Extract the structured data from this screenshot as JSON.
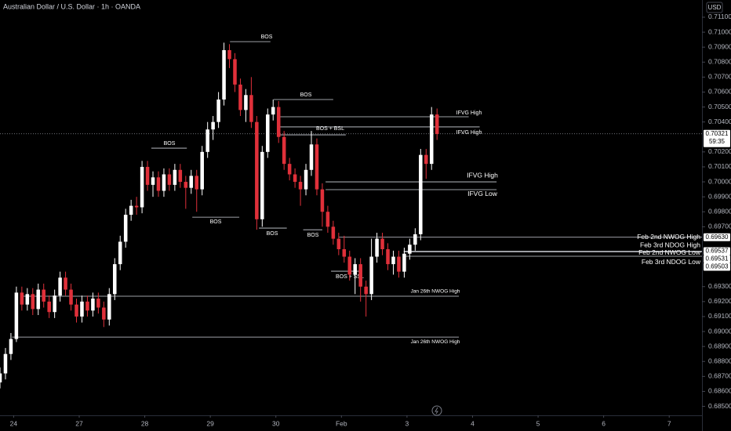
{
  "chart_data": {
    "type": "candlestick",
    "title": "Australian Dollar / U.S. Dollar · 1h · OANDA",
    "currency": "USD",
    "countdown": "59:35",
    "up_color": "#ffffff",
    "down_color": "#e0303a",
    "xlim": [
      0,
      128.5
    ],
    "xticks": [
      {
        "value": 2.5,
        "label": "24"
      },
      {
        "value": 14.5,
        "label": "27"
      },
      {
        "value": 26.5,
        "label": "28"
      },
      {
        "value": 38.5,
        "label": "29"
      },
      {
        "value": 50.5,
        "label": "30"
      },
      {
        "value": 62.5,
        "label": "Feb"
      },
      {
        "value": 74.5,
        "label": "3"
      },
      {
        "value": 86.5,
        "label": "4"
      },
      {
        "value": 98.5,
        "label": "5"
      },
      {
        "value": 110.5,
        "label": "6"
      },
      {
        "value": 122.5,
        "label": "7"
      }
    ],
    "ylim": [
      0.6844,
      0.71215
    ],
    "yticks": [
      {
        "value": 0.685,
        "label": "0.68500"
      },
      {
        "value": 0.686,
        "label": "0.68600"
      },
      {
        "value": 0.687,
        "label": "0.68700"
      },
      {
        "value": 0.688,
        "label": "0.68800"
      },
      {
        "value": 0.689,
        "label": "0.68900"
      },
      {
        "value": 0.69,
        "label": "0.69000"
      },
      {
        "value": 0.691,
        "label": "0.69100"
      },
      {
        "value": 0.692,
        "label": "0.69200"
      },
      {
        "value": 0.693,
        "label": "0.69300"
      },
      {
        "value": 0.697,
        "label": "0.69700"
      },
      {
        "value": 0.698,
        "label": "0.69800"
      },
      {
        "value": 0.699,
        "label": "0.69900"
      },
      {
        "value": 0.7,
        "label": "0.70000"
      },
      {
        "value": 0.701,
        "label": "0.70100"
      },
      {
        "value": 0.702,
        "label": "0.70200"
      },
      {
        "value": 0.704,
        "label": "0.70400"
      },
      {
        "value": 0.705,
        "label": "0.70500"
      },
      {
        "value": 0.706,
        "label": "0.70600"
      },
      {
        "value": 0.707,
        "label": "0.70700"
      },
      {
        "value": 0.708,
        "label": "0.70800"
      },
      {
        "value": 0.709,
        "label": "0.70900"
      },
      {
        "value": 0.71,
        "label": "0.71000"
      },
      {
        "value": 0.711,
        "label": "0.71100"
      }
    ],
    "grid": false,
    "open": [
      0.6866,
      0.6872,
      0.6885,
      0.6895,
      0.6926,
      0.6918,
      0.6925,
      0.6915,
      0.6928,
      0.692,
      0.6913,
      0.6924,
      0.6936,
      0.6928,
      0.6918,
      0.691,
      0.692,
      0.6914,
      0.6922,
      0.6916,
      0.6908,
      0.6925,
      0.6945,
      0.696,
      0.6978,
      0.6984,
      0.6983,
      0.701,
      0.6998,
      0.7003,
      0.6994,
      0.7005,
      0.6998,
      0.7008,
      0.7,
      0.6996,
      0.7004,
      0.6995,
      0.702,
      0.7035,
      0.704,
      0.7055,
      0.7088,
      0.7082,
      0.7065,
      0.7048,
      0.7058,
      0.704,
      0.6975,
      0.702,
      0.7045,
      0.705,
      0.703,
      0.7012,
      0.7005,
      0.7,
      0.6995,
      0.7008,
      0.7025,
      0.6995,
      0.698,
      0.697,
      0.6962,
      0.6955,
      0.695,
      0.6938,
      0.6945,
      0.693,
      0.6925,
      0.695,
      0.6962,
      0.6955,
      0.6945,
      0.695,
      0.694,
      0.6952,
      0.6958,
      0.6965,
      0.7018,
      0.7012,
      0.7045
    ],
    "close": [
      0.6872,
      0.6885,
      0.6895,
      0.6926,
      0.6918,
      0.6925,
      0.6915,
      0.6928,
      0.692,
      0.6913,
      0.6924,
      0.6936,
      0.6928,
      0.6918,
      0.691,
      0.692,
      0.6914,
      0.6922,
      0.6916,
      0.6908,
      0.6925,
      0.6945,
      0.696,
      0.6978,
      0.6984,
      0.6983,
      0.701,
      0.6998,
      0.7003,
      0.6994,
      0.7005,
      0.6998,
      0.7008,
      0.7,
      0.6996,
      0.7004,
      0.6995,
      0.702,
      0.7035,
      0.704,
      0.7055,
      0.7088,
      0.7082,
      0.7065,
      0.7048,
      0.7058,
      0.704,
      0.6975,
      0.702,
      0.7045,
      0.705,
      0.703,
      0.7012,
      0.7005,
      0.7,
      0.6995,
      0.7008,
      0.7025,
      0.6995,
      0.698,
      0.697,
      0.6962,
      0.6955,
      0.695,
      0.6938,
      0.6945,
      0.693,
      0.6925,
      0.695,
      0.6962,
      0.6955,
      0.6945,
      0.695,
      0.694,
      0.6952,
      0.6958,
      0.6965,
      0.7018,
      0.7012,
      0.7045,
      0.7032
    ],
    "high": [
      0.6876,
      0.6889,
      0.6899,
      0.693,
      0.693,
      0.6929,
      0.6929,
      0.6932,
      0.6932,
      0.6924,
      0.6928,
      0.694,
      0.694,
      0.6932,
      0.6922,
      0.6924,
      0.6924,
      0.6926,
      0.6926,
      0.692,
      0.6929,
      0.6949,
      0.6964,
      0.6982,
      0.6988,
      0.699,
      0.7014,
      0.7014,
      0.7007,
      0.7007,
      0.7009,
      0.7009,
      0.7012,
      0.7012,
      0.7004,
      0.7008,
      0.7008,
      0.7024,
      0.704,
      0.7044,
      0.706,
      0.7093,
      0.7092,
      0.7086,
      0.7069,
      0.7062,
      0.707,
      0.7044,
      0.7024,
      0.7049,
      0.7055,
      0.7054,
      0.7034,
      0.7016,
      0.7009,
      0.7004,
      0.7012,
      0.7034,
      0.7029,
      0.6999,
      0.6984,
      0.6974,
      0.6966,
      0.6964,
      0.6954,
      0.6949,
      0.6949,
      0.6934,
      0.6962,
      0.6966,
      0.6966,
      0.6959,
      0.6954,
      0.6954,
      0.6956,
      0.6962,
      0.6969,
      0.7022,
      0.7022,
      0.705,
      0.7049
    ],
    "low": [
      0.6862,
      0.6868,
      0.6881,
      0.6893,
      0.6914,
      0.6914,
      0.6911,
      0.6911,
      0.6916,
      0.6909,
      0.6909,
      0.692,
      0.6924,
      0.6914,
      0.6906,
      0.6906,
      0.691,
      0.691,
      0.6912,
      0.6903,
      0.6904,
      0.6921,
      0.6941,
      0.6956,
      0.6974,
      0.6978,
      0.6979,
      0.6994,
      0.699,
      0.699,
      0.699,
      0.6994,
      0.6994,
      0.6996,
      0.6982,
      0.6992,
      0.698,
      0.6991,
      0.7016,
      0.7028,
      0.7036,
      0.7051,
      0.7076,
      0.706,
      0.7044,
      0.704,
      0.7036,
      0.6968,
      0.697,
      0.7016,
      0.7041,
      0.7026,
      0.7008,
      0.7001,
      0.6996,
      0.6984,
      0.6991,
      0.7004,
      0.6991,
      0.697,
      0.6966,
      0.6958,
      0.6951,
      0.6946,
      0.6934,
      0.6925,
      0.692,
      0.691,
      0.6921,
      0.6946,
      0.6951,
      0.6941,
      0.6938,
      0.6936,
      0.6936,
      0.6948,
      0.6954,
      0.6961,
      0.7002,
      0.7008,
      0.7028
    ],
    "annotations": [
      {
        "text": "BOS",
        "value": 0.70937,
        "x": [
          42.1,
          49.5
        ]
      },
      {
        "text": "BOS",
        "value": 0.7055,
        "x": [
          50.1,
          61.0
        ]
      },
      {
        "text": "BOS + BSL",
        "value": 0.70314,
        "x": [
          51.0,
          63.3
        ]
      },
      {
        "text": "BOS",
        "value": 0.70225,
        "x": [
          27.7,
          34.2
        ]
      },
      {
        "text": "BOS",
        "value": 0.69764,
        "x": [
          35.2,
          43.8
        ]
      },
      {
        "text": "BOS",
        "value": 0.69691,
        "x": [
          47.4,
          52.5
        ]
      },
      {
        "text": "BOS",
        "value": 0.6968,
        "x": [
          55.5,
          59.0
        ]
      },
      {
        "text": "BOS + SSL",
        "value": 0.69403,
        "x": [
          60.6,
          66.3
        ]
      },
      {
        "text": "IFVG High",
        "value": 0.70435,
        "x": [
          51.0,
          85.8
        ]
      },
      {
        "text": "IFVG High",
        "value": 0.70367,
        "x": [
          51.0,
          87.8
        ]
      },
      {
        "text": "IFVG High",
        "value": 0.7,
        "x": [
          59.6,
          90.9
        ]
      },
      {
        "text": "IFVG Low",
        "value": 0.69948,
        "x": [
          59.6,
          90.9
        ]
      },
      {
        "text": "Feb 2nd NWOG High",
        "value": 0.6963,
        "x": [
          62.0,
          128.5
        ]
      },
      {
        "text": "Feb 3rd NDOG High",
        "value": 0.69537,
        "x": [
          73.9,
          128.5
        ]
      },
      {
        "text": "Feb 2nd NWOG Low",
        "value": 0.69531,
        "x": [
          73.9,
          128.5
        ]
      },
      {
        "text": "Feb 3rd NDOG Low",
        "value": 0.69503,
        "x": [
          73.9,
          128.5
        ]
      },
      {
        "text": "Jan 26th NWOG High",
        "value": 0.69236,
        "x": [
          4.0,
          84.0
        ]
      },
      {
        "text": "Jan 26th NWOG High",
        "value": 0.68963,
        "x": [
          2.2,
          84.0
        ]
      }
    ],
    "price_labels": [
      {
        "value": 0.70321,
        "label": "0.70321"
      },
      {
        "value": 0.6963,
        "label": "0.69630"
      },
      {
        "value": 0.69537,
        "label": "0.69537"
      },
      {
        "value": 0.69531,
        "label": "0.69531"
      },
      {
        "value": 0.69503,
        "label": "0.69503"
      }
    ]
  }
}
